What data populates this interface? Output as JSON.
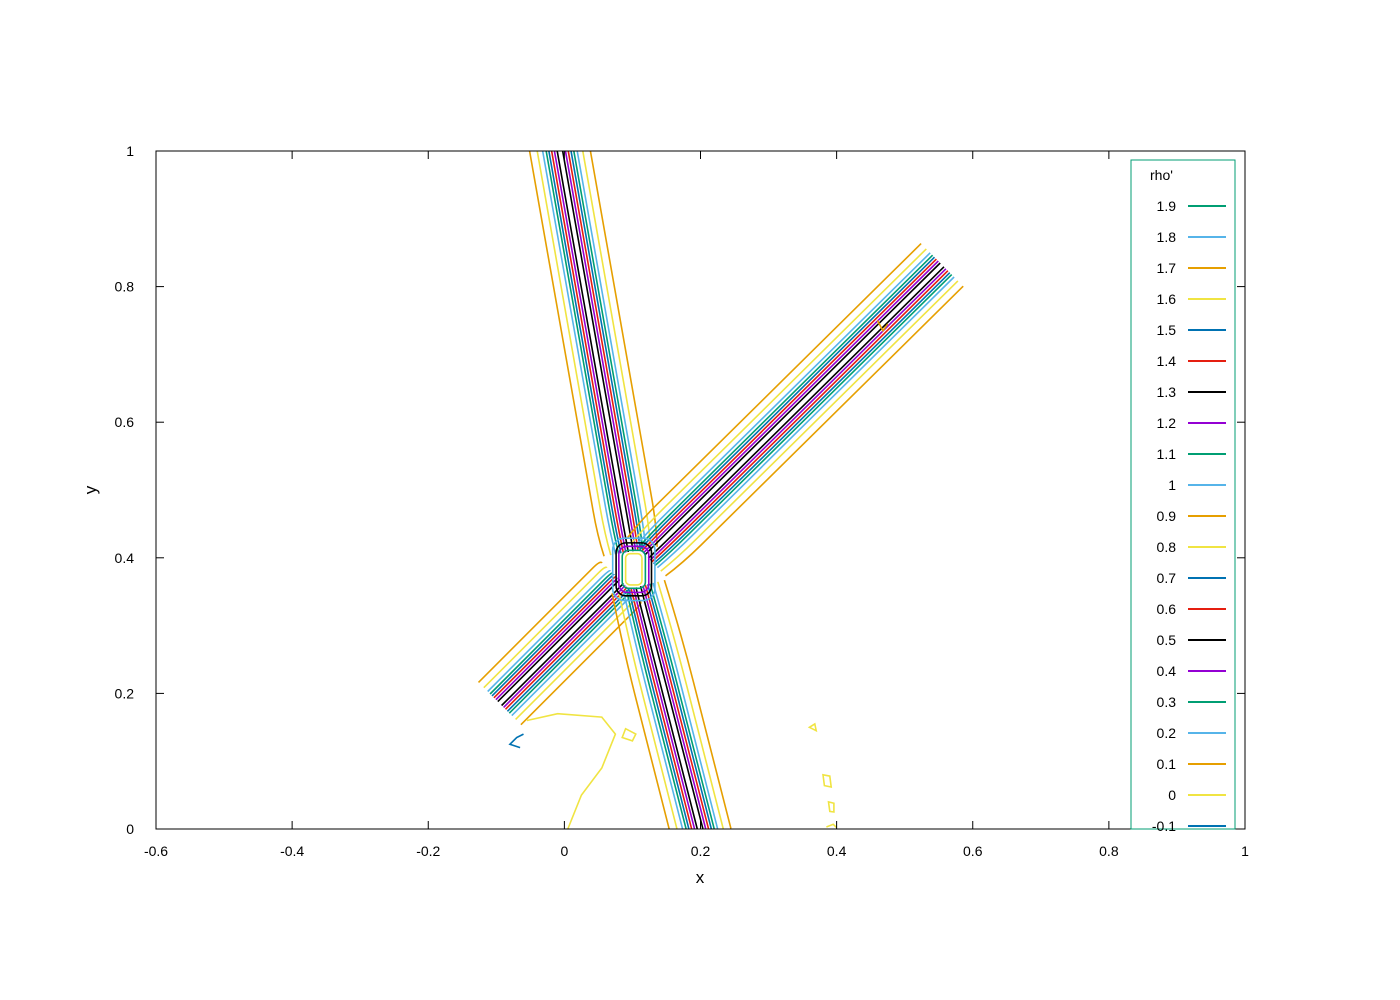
{
  "chart_data": {
    "type": "contour",
    "xlabel": "x",
    "ylabel": "y",
    "xlim": [
      -0.6,
      1
    ],
    "ylim": [
      0,
      1
    ],
    "xticks": [
      "-0.6",
      "-0.4",
      "-0.2",
      "0",
      "0.2",
      "0.4",
      "0.6",
      "0.8",
      "1"
    ],
    "yticks": [
      "0",
      "0.2",
      "0.4",
      "0.6",
      "0.8",
      "1"
    ],
    "xtick_values": [
      -0.6,
      -0.4,
      -0.2,
      0,
      0.2,
      0.4,
      0.6,
      0.8,
      1
    ],
    "ytick_values": [
      0,
      0.2,
      0.4,
      0.6,
      0.8,
      1
    ],
    "grid": false,
    "legend": {
      "title": "rho'",
      "placement": "right",
      "entries": [
        {
          "label": "1.9",
          "color": "#009e73"
        },
        {
          "label": "1.8",
          "color": "#56b4e9"
        },
        {
          "label": "1.7",
          "color": "#e69f00"
        },
        {
          "label": "1.6",
          "color": "#f0e442"
        },
        {
          "label": "1.5",
          "color": "#0072b2"
        },
        {
          "label": "1.4",
          "color": "#e51e10"
        },
        {
          "label": "1.3",
          "color": "#000000"
        },
        {
          "label": "1.2",
          "color": "#9400d3"
        },
        {
          "label": "1.1",
          "color": "#009e73"
        },
        {
          "label": "1",
          "color": "#56b4e9"
        },
        {
          "label": "0.9",
          "color": "#e69f00"
        },
        {
          "label": "0.8",
          "color": "#f0e442"
        },
        {
          "label": "0.7",
          "color": "#0072b2"
        },
        {
          "label": "0.6",
          "color": "#e51e10"
        },
        {
          "label": "0.5",
          "color": "#000000"
        },
        {
          "label": "0.4",
          "color": "#9400d3"
        },
        {
          "label": "0.3",
          "color": "#009e73"
        },
        {
          "label": "0.2",
          "color": "#56b4e9"
        },
        {
          "label": "0.1",
          "color": "#e69f00"
        },
        {
          "label": "0",
          "color": "#f0e442"
        },
        {
          "label": "-0.1",
          "color": "#0072b2"
        }
      ]
    },
    "arms": [
      {
        "name": "upper-left",
        "start": [
          0.102,
          0.383
        ],
        "end": [
          -0.01,
          1.02
        ],
        "curve_at": 0.15
      },
      {
        "name": "upper-right",
        "start": [
          0.102,
          0.383
        ],
        "end": [
          0.555,
          0.832
        ],
        "curve_at": 0.15
      },
      {
        "name": "lower-left",
        "start": [
          0.102,
          0.383
        ],
        "end": [
          -0.095,
          0.185
        ],
        "curve_at": 0.15
      },
      {
        "name": "lower",
        "start": [
          0.102,
          0.383
        ],
        "end": [
          0.202,
          -0.01
        ],
        "curve_at": 0.45
      }
    ],
    "band_offsets": [
      0.004,
      0.008,
      0.012,
      0.016,
      0.02,
      0.025,
      0.033,
      0.044
    ],
    "band_colors": [
      "#000000",
      "#9400d3",
      "#e51e10",
      "#0072b2",
      "#009e73",
      "#56b4e9",
      "#f0e442",
      "#e69f00"
    ],
    "center_loops": [
      {
        "rx": 0.012,
        "ry": 0.023,
        "color": "#f0e442"
      },
      {
        "rx": 0.017,
        "ry": 0.028,
        "color": "#009e73"
      },
      {
        "rx": 0.022,
        "ry": 0.034,
        "color": "#9400d3"
      },
      {
        "rx": 0.026,
        "ry": 0.039,
        "color": "#000000"
      },
      {
        "rx": 0.031,
        "ry": 0.046,
        "color": "#56b4e9"
      }
    ],
    "extra_contours": [
      {
        "color": "#f0e442",
        "points": [
          [
            0.005,
            0.0
          ],
          [
            0.025,
            0.05
          ],
          [
            0.055,
            0.09
          ],
          [
            0.075,
            0.14
          ],
          [
            0.055,
            0.165
          ],
          [
            -0.01,
            0.17
          ],
          [
            -0.055,
            0.16
          ]
        ]
      },
      {
        "color": "#0072b2",
        "points": [
          [
            -0.06,
            0.14
          ],
          [
            -0.07,
            0.135
          ],
          [
            -0.08,
            0.125
          ],
          [
            -0.065,
            0.12
          ]
        ]
      },
      {
        "color": "#f0e442",
        "closed": true,
        "points": [
          [
            0.085,
            0.135
          ],
          [
            0.1,
            0.13
          ],
          [
            0.105,
            0.14
          ],
          [
            0.09,
            0.148
          ]
        ]
      },
      {
        "color": "#f0e442",
        "closed": true,
        "points": [
          [
            0.36,
            0.15
          ],
          [
            0.37,
            0.145
          ],
          [
            0.368,
            0.155
          ]
        ]
      },
      {
        "color": "#f0e442",
        "closed": true,
        "points": [
          [
            0.38,
            0.08
          ],
          [
            0.39,
            0.078
          ],
          [
            0.392,
            0.062
          ],
          [
            0.382,
            0.064
          ]
        ]
      },
      {
        "color": "#f0e442",
        "closed": true,
        "points": [
          [
            0.388,
            0.04
          ],
          [
            0.396,
            0.038
          ],
          [
            0.396,
            0.025
          ],
          [
            0.39,
            0.026
          ]
        ]
      },
      {
        "color": "#f0e442",
        "points": [
          [
            0.385,
            0.003
          ],
          [
            0.395,
            0.007
          ],
          [
            0.4,
            0.002
          ]
        ]
      },
      {
        "color": "#e69f00",
        "points": [
          [
            0.46,
            0.75
          ],
          [
            0.468,
            0.735
          ],
          [
            0.475,
            0.745
          ]
        ]
      }
    ]
  }
}
